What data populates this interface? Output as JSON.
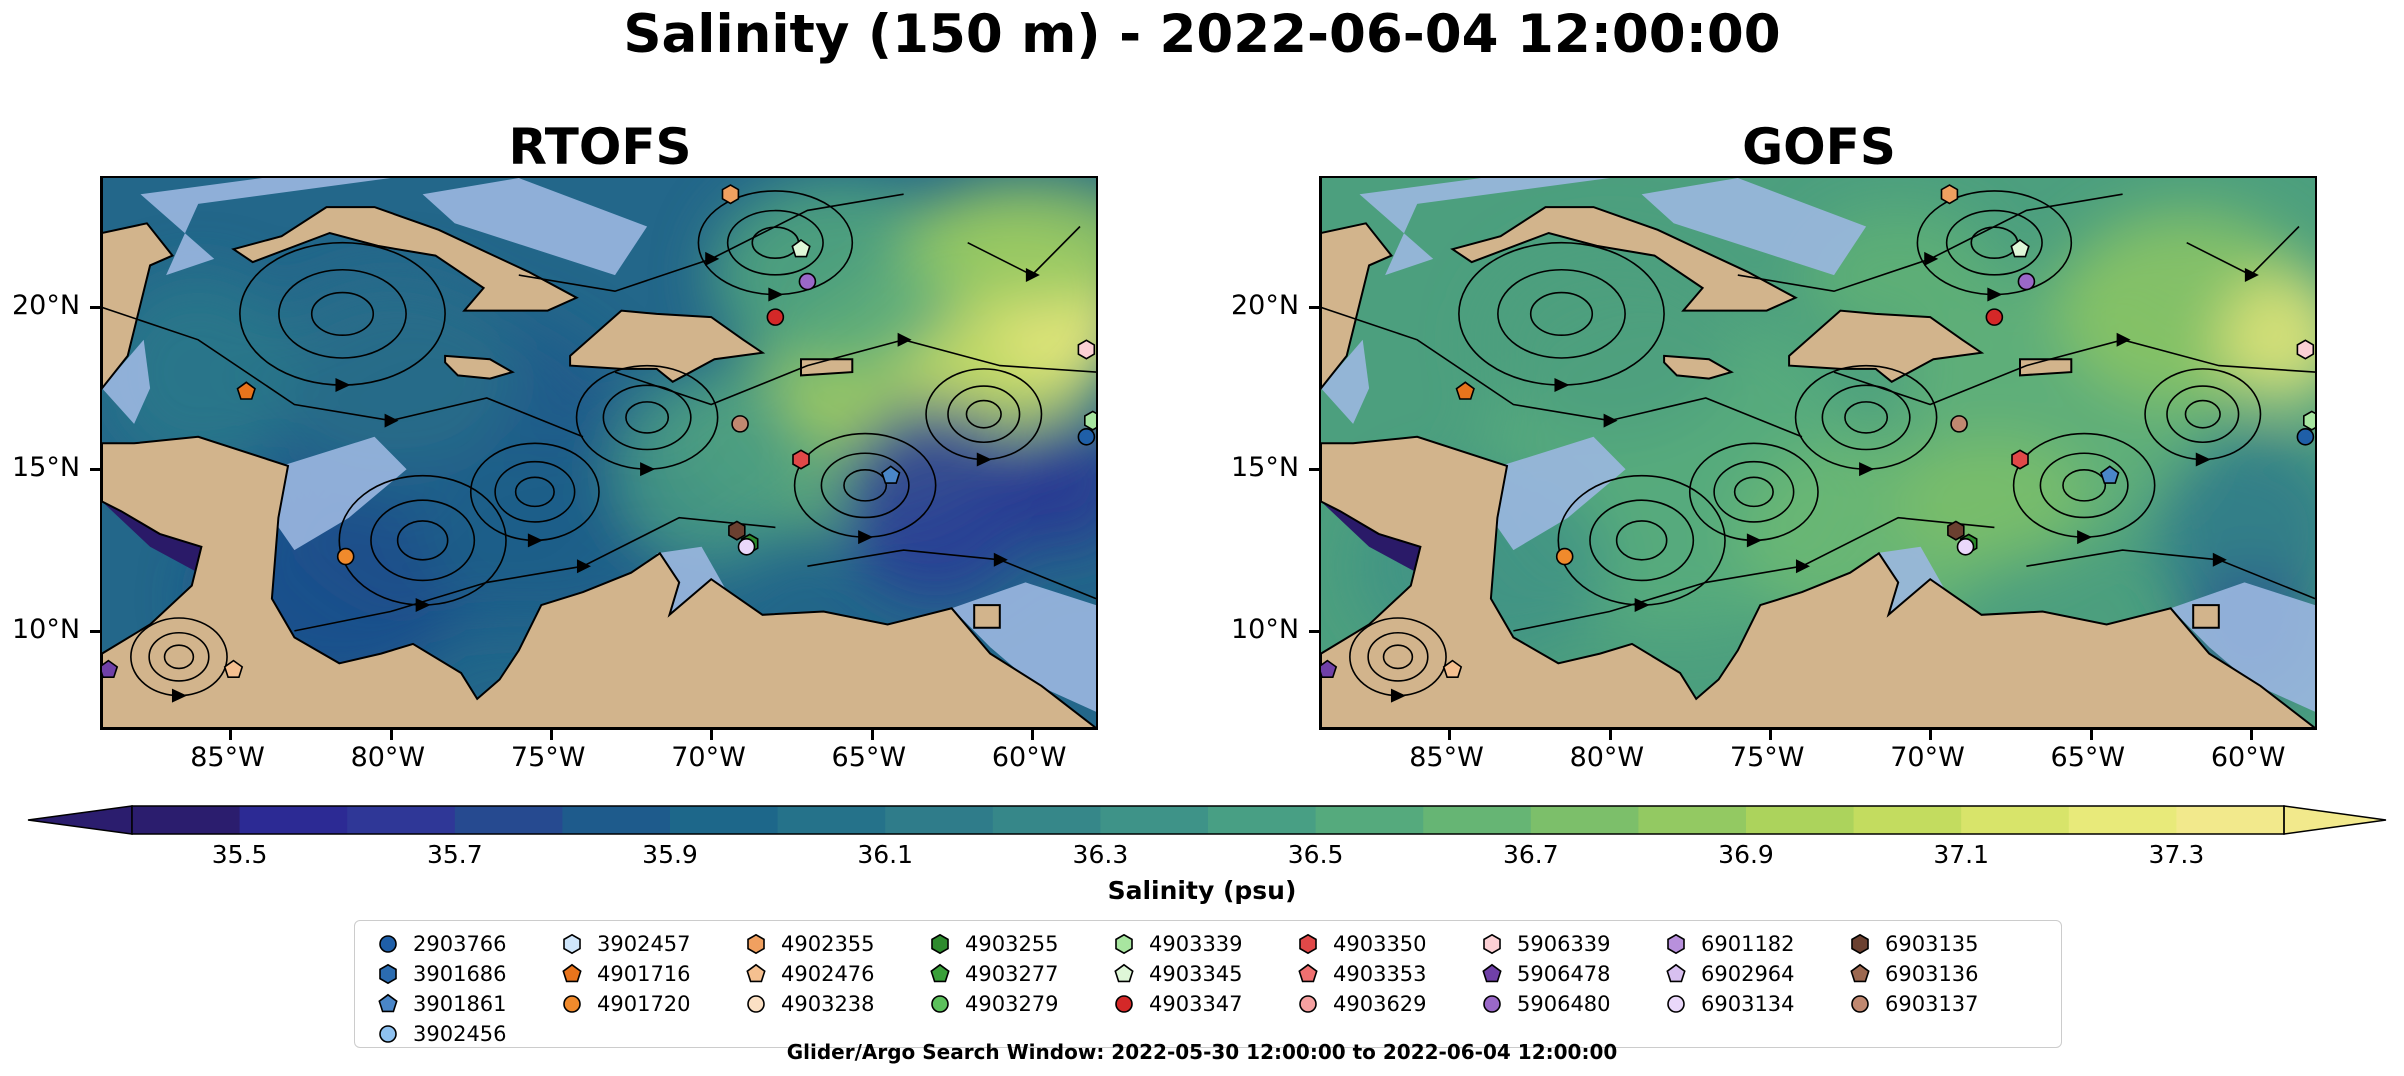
{
  "suptitle": "Salinity (150 m) - 2022-06-04 12:00:00",
  "panels": [
    {
      "title": "RTOFS"
    },
    {
      "title": "GOFS"
    }
  ],
  "colors": {
    "land": "#d2b48c",
    "ocean_shallow": "#9bb7e0",
    "deep_pacific": "#2a1a68"
  },
  "chart_data": {
    "type": "heatmap",
    "variable": "Salinity (150 m)",
    "region": {
      "lon_range": [
        -89,
        -58
      ],
      "lat_range": [
        7,
        24
      ]
    },
    "xticks": [
      "85°W",
      "80°W",
      "75°W",
      "70°W",
      "65°W",
      "60°W"
    ],
    "xtick_values": [
      -85,
      -80,
      -75,
      -70,
      -65,
      -60
    ],
    "yticks": [
      "20°N",
      "15°N",
      "10°N"
    ],
    "ytick_values": [
      20,
      15,
      10
    ],
    "colorbar": {
      "label": "Salinity (psu)",
      "range": [
        35.4,
        37.4
      ],
      "ticks": [
        35.5,
        35.7,
        35.9,
        36.1,
        36.3,
        36.5,
        36.7,
        36.9,
        37.1,
        37.3
      ],
      "tick_labels": [
        "35.5",
        "35.7",
        "35.9",
        "36.1",
        "36.3",
        "36.5",
        "36.7",
        "36.9",
        "37.1",
        "37.3"
      ],
      "colors": [
        "#2b1d6e",
        "#2c2a94",
        "#2f3797",
        "#264a90",
        "#1e5b8c",
        "#1d678a",
        "#25728a",
        "#2f7c8a",
        "#368789",
        "#3e9388",
        "#489f84",
        "#55aa7d",
        "#66b574",
        "#7cbf6a",
        "#93c962",
        "#acd35c",
        "#c3dc5f",
        "#d8e46a",
        "#e8ea7a",
        "#f2e98c"
      ]
    },
    "legend": {
      "title": "Glider/Argo Search Window: 2022-05-30 12:00:00 to 2022-06-04 12:00:00",
      "entries": [
        {
          "id": "2903766",
          "marker": "circle",
          "color": "#1f5fa8",
          "lon": -58.3,
          "lat": 16.0
        },
        {
          "id": "3901686",
          "marker": "hexagon",
          "color": "#2b6cb0"
        },
        {
          "id": "3901861",
          "marker": "pentagon",
          "color": "#4a86c8",
          "lon": -64.4,
          "lat": 14.8
        },
        {
          "id": "3902456",
          "marker": "circle",
          "color": "#8ec1f0"
        },
        {
          "id": "3902457",
          "marker": "hexagon",
          "color": "#cfe6fb"
        },
        {
          "id": "4901716",
          "marker": "pentagon",
          "color": "#e8741c",
          "lon": -84.5,
          "lat": 17.4
        },
        {
          "id": "4901720",
          "marker": "circle",
          "color": "#f08a2c",
          "lon": -81.4,
          "lat": 12.3
        },
        {
          "id": "4902355",
          "marker": "hexagon",
          "color": "#f0a060",
          "lon": -69.4,
          "lat": 23.5
        },
        {
          "id": "4902476",
          "marker": "pentagon",
          "color": "#f5c090",
          "lon": -84.9,
          "lat": 8.8
        },
        {
          "id": "4903238",
          "marker": "circle",
          "color": "#fbe0c4"
        },
        {
          "id": "4903255",
          "marker": "hexagon",
          "color": "#2e8b2e",
          "lon": -68.8,
          "lat": 12.7
        },
        {
          "id": "4903277",
          "marker": "pentagon",
          "color": "#3aa03a"
        },
        {
          "id": "4903279",
          "marker": "circle",
          "color": "#5cc05c"
        },
        {
          "id": "4903339",
          "marker": "hexagon",
          "color": "#a8e6a0",
          "lon": -58.1,
          "lat": 16.5
        },
        {
          "id": "4903345",
          "marker": "pentagon",
          "color": "#dff7d8",
          "lon": -67.2,
          "lat": 21.8
        },
        {
          "id": "4903347",
          "marker": "circle",
          "color": "#d42828",
          "lon": -68.0,
          "lat": 19.7
        },
        {
          "id": "4903350",
          "marker": "hexagon",
          "color": "#e04848",
          "lon": -67.2,
          "lat": 15.3
        },
        {
          "id": "4903353",
          "marker": "pentagon",
          "color": "#f07070"
        },
        {
          "id": "4903629",
          "marker": "circle",
          "color": "#f5a0a0"
        },
        {
          "id": "5906339",
          "marker": "hexagon",
          "color": "#fcd0d4",
          "lon": -58.3,
          "lat": 18.7
        },
        {
          "id": "5906478",
          "marker": "pentagon",
          "color": "#7040a8",
          "lon": -88.8,
          "lat": 8.8
        },
        {
          "id": "5906480",
          "marker": "circle",
          "color": "#9a68c8",
          "lon": -67.0,
          "lat": 20.8
        },
        {
          "id": "6901182",
          "marker": "hexagon",
          "color": "#b890dc"
        },
        {
          "id": "6902964",
          "marker": "pentagon",
          "color": "#d8c0f0"
        },
        {
          "id": "6903134",
          "marker": "circle",
          "color": "#ead8fa",
          "lon": -68.9,
          "lat": 12.6
        },
        {
          "id": "6903135",
          "marker": "hexagon",
          "color": "#6b4030",
          "lon": -69.2,
          "lat": 13.1
        },
        {
          "id": "6903136",
          "marker": "pentagon",
          "color": "#9c6850"
        },
        {
          "id": "6903137",
          "marker": "circle",
          "color": "#c08870",
          "lon": -69.1,
          "lat": 16.4
        }
      ]
    }
  }
}
